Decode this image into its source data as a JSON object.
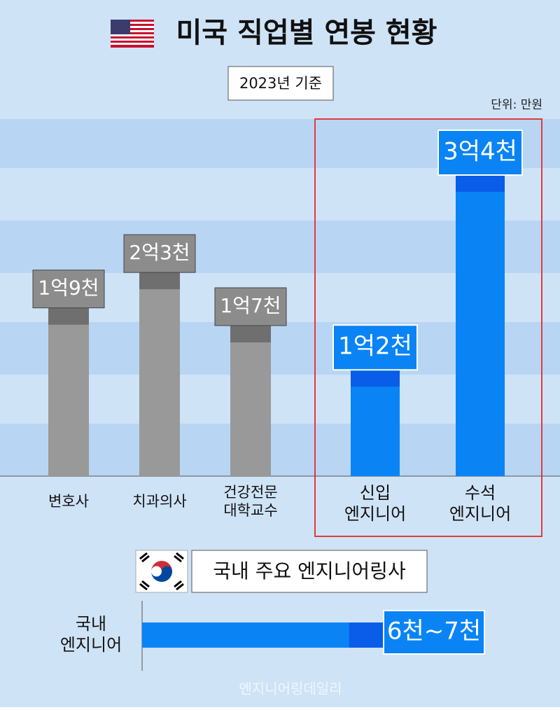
{
  "chart_data": [
    {
      "type": "bar",
      "title": "미국 직업별 연봉 현황",
      "subtitle": "2023년 기준",
      "unit": "단위: 만원",
      "categories": [
        "변호사",
        "치과의사",
        "건강전문\n대학교수",
        "신입\n엔지니어",
        "수석\n엔지니어"
      ],
      "values": [
        19000,
        23000,
        17000,
        12000,
        34000
      ],
      "value_labels": [
        "1억9천",
        "2억3천",
        "1억7천",
        "1억2천",
        "3억4천"
      ],
      "colors": [
        "#999999",
        "#999999",
        "#999999",
        "#0a84f5",
        "#0a84f5"
      ]
    },
    {
      "type": "range-bar",
      "title": "국내 주요 엔지니어링사",
      "categories": [
        "국내\n엔지니어"
      ],
      "low": [
        6000
      ],
      "high": [
        7000
      ],
      "value_labels": [
        "6천~7천"
      ],
      "color": "#0a84f5"
    }
  ],
  "source": "엔지니어링데일리"
}
